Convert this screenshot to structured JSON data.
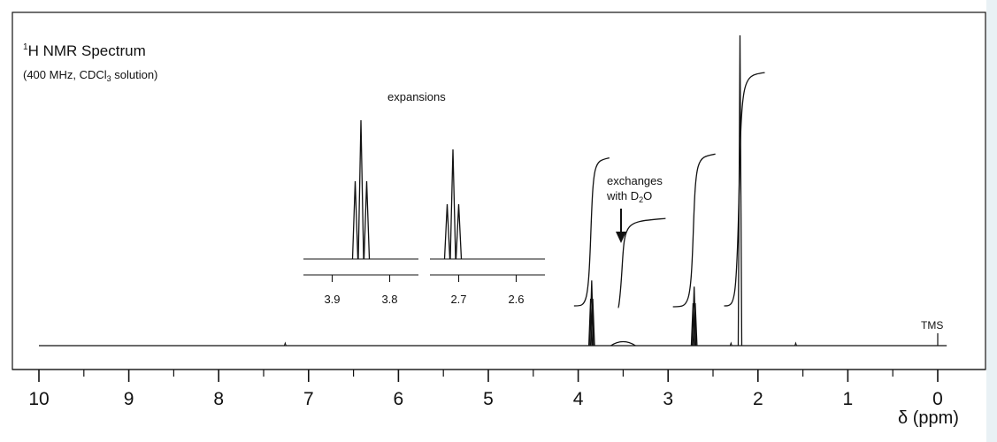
{
  "chart_data": {
    "type": "line",
    "title": "H NMR Spectrum",
    "title_superscript": "1",
    "subtitle_prefix": "(400 MHz, CDCl",
    "subtitle_sub": "3",
    "subtitle_suffix": " solution)",
    "xlabel": "δ (ppm)",
    "x_axis_reversed": true,
    "xlim": [
      10,
      0
    ],
    "x_ticks": [
      "10",
      "9",
      "8",
      "7",
      "6",
      "5",
      "4",
      "3",
      "2",
      "1",
      "0"
    ],
    "reference_label": "TMS",
    "series": [
      {
        "peaks": [
          {
            "ppm": 3.85,
            "relative_height": 0.21,
            "multiplicity": "triplet"
          },
          {
            "ppm": 3.5,
            "relative_height": 0.02,
            "multiplicity": "broad"
          },
          {
            "ppm": 2.71,
            "relative_height": 0.19,
            "multiplicity": "triplet"
          },
          {
            "ppm": 2.2,
            "relative_height": 1.0,
            "multiplicity": "singlet"
          },
          {
            "ppm": 0.0,
            "relative_height": 0.0,
            "multiplicity": "reference"
          }
        ]
      }
    ],
    "integrals": [
      {
        "ppm_center": 3.85,
        "relative_step": 2
      },
      {
        "ppm_center": 3.5,
        "relative_step": 1
      },
      {
        "ppm_center": 2.71,
        "relative_step": 2
      },
      {
        "ppm_center": 2.2,
        "relative_step": 3
      }
    ],
    "annotations": {
      "expansions": "expansions",
      "exchanges_line1": "exchanges",
      "exchanges_line2_prefix": "with D",
      "exchanges_line2_sub": "2",
      "exchanges_line2_suffix": "O"
    },
    "expansions": [
      {
        "ticks": [
          "3.9",
          "3.8"
        ],
        "tick_values": [
          3.9,
          3.8
        ],
        "peaks_ppm": [
          3.86,
          3.85,
          3.84
        ]
      },
      {
        "ticks": [
          "2.7",
          "2.6"
        ],
        "tick_values": [
          2.7,
          2.6
        ],
        "peaks_ppm": [
          2.72,
          2.71,
          2.7
        ]
      }
    ],
    "grid": false,
    "legend": "none"
  },
  "colors": {
    "line": "#111111",
    "side_strip": "#e9f1f5",
    "background": "#ffffff"
  }
}
